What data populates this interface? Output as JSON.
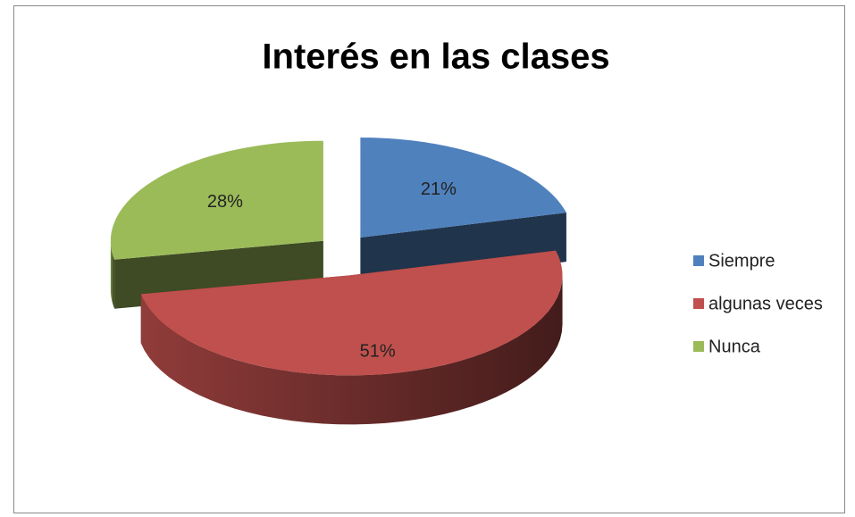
{
  "chart_data": {
    "type": "pie",
    "title": "Interés en las clases",
    "categories": [
      "Siempre",
      "algunas veces",
      "Nunca"
    ],
    "values": [
      21,
      51,
      28
    ],
    "value_labels": [
      "21%",
      "51%",
      "28%"
    ],
    "colors": [
      "#4f81bd",
      "#c0504d",
      "#9bbb59"
    ],
    "legend": "right"
  }
}
